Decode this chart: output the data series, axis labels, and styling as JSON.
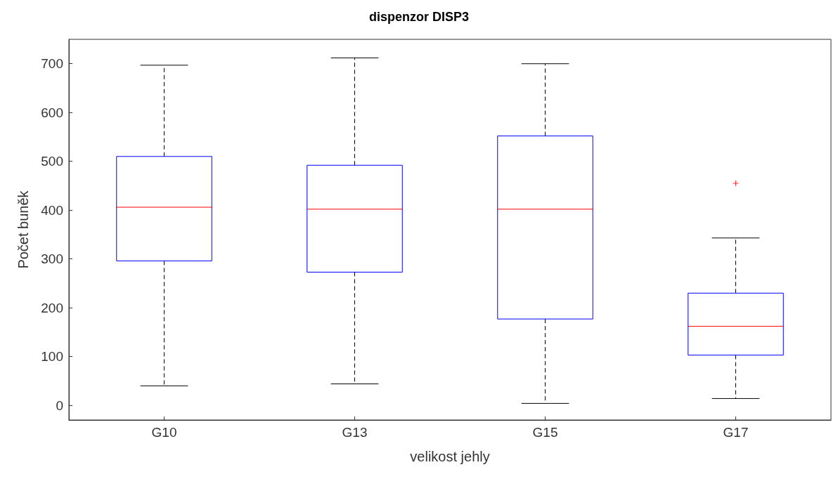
{
  "chart_data": {
    "type": "box",
    "title": "dispenzor DISP3",
    "xlabel": "velikost jehly",
    "ylabel": "Počet buněk",
    "categories": [
      "G10",
      "G13",
      "G15",
      "G17"
    ],
    "series": [
      {
        "color": "#0000ff",
        "boxes": [
          {
            "low": 40,
            "q1": 296,
            "median": 406,
            "q3": 510,
            "high": 697
          },
          {
            "low": 44,
            "q1": 273,
            "median": 402,
            "q3": 492,
            "high": 712
          },
          {
            "low": 4,
            "q1": 177,
            "median": 402,
            "q3": 552,
            "high": 700
          },
          {
            "low": 14,
            "q1": 103,
            "median": 162,
            "q3": 230,
            "high": 343,
            "outliers": [
              455
            ]
          }
        ]
      }
    ],
    "ylim": [
      -30,
      750
    ],
    "yticks": [
      0,
      100,
      200,
      300,
      400,
      500,
      600,
      700
    ]
  }
}
